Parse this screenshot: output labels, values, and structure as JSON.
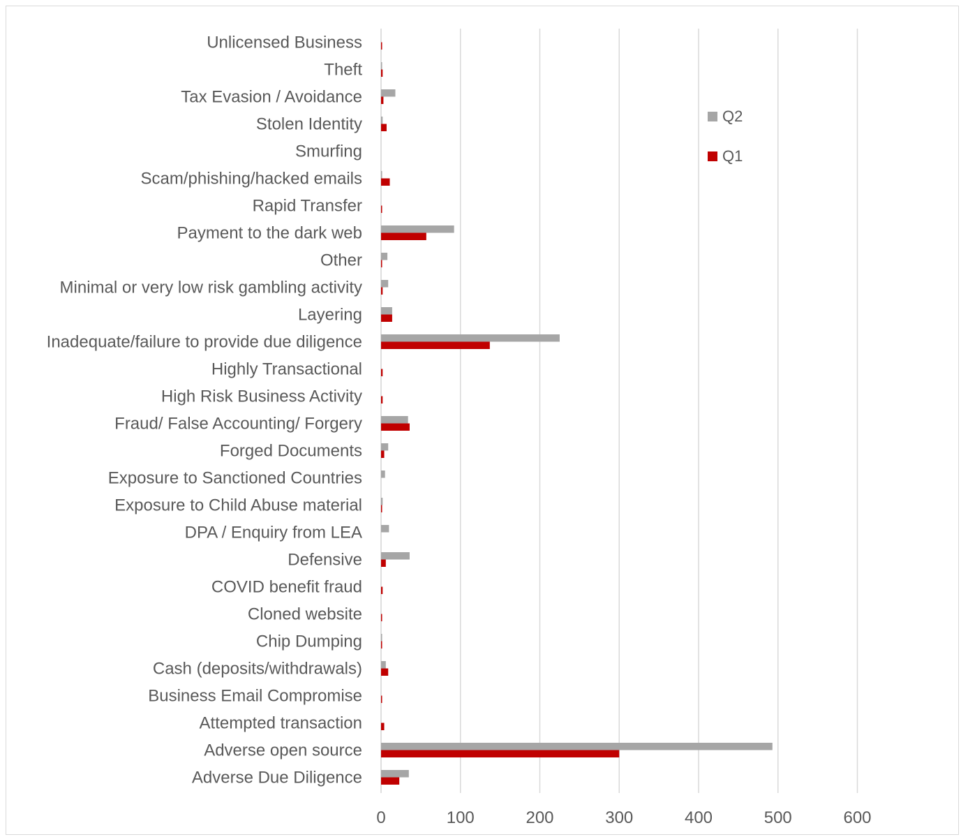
{
  "chart_data": {
    "type": "bar",
    "orientation": "horizontal",
    "title": "",
    "xlabel": "",
    "ylabel": "",
    "xlim": [
      0,
      600
    ],
    "x_ticks": [
      "0",
      "100",
      "200",
      "300",
      "400",
      "500",
      "600"
    ],
    "grid": "vertical",
    "legend_position": "top-right",
    "categories": [
      "Unlicensed Business",
      "Theft",
      "Tax Evasion / Avoidance",
      "Stolen Identity",
      "Smurfing",
      "Scam/phishing/hacked emails",
      "Rapid Transfer",
      "Payment to the dark web",
      "Other",
      "Minimal or very low risk gambling activity",
      "Layering",
      "Inadequate/failure to provide due diligence",
      "Highly Transactional",
      "High Risk Business Activity",
      "Fraud/ False Accounting/ Forgery",
      "Forged Documents",
      "Exposure to Sanctioned Countries",
      "Exposure to Child Abuse material",
      "DPA / Enquiry from  LEA",
      "Defensive",
      "COVID benefit fraud",
      "Cloned website",
      "Chip Dumping",
      "Cash (deposits/withdrawals)",
      "Business Email Compromise",
      "Attempted transaction",
      "Adverse open source",
      "Adverse Due Diligence"
    ],
    "series": [
      {
        "name": "Q2",
        "color": "#a6a6a6",
        "values": [
          0,
          1,
          18,
          2,
          0,
          1,
          0,
          92,
          8,
          9,
          14,
          225,
          0,
          0,
          34,
          9,
          5,
          2,
          10,
          36,
          0,
          0,
          1,
          6,
          0,
          0,
          493,
          35
        ]
      },
      {
        "name": "Q1",
        "color": "#c00000",
        "values": [
          1,
          2,
          3,
          7,
          0,
          11,
          1,
          57,
          1,
          2,
          14,
          137,
          2,
          2,
          36,
          4,
          0,
          1,
          0,
          6,
          2,
          1,
          1,
          9,
          1,
          4,
          300,
          23
        ]
      }
    ]
  },
  "legend": {
    "items": [
      {
        "label": "Q2",
        "color": "#a6a6a6"
      },
      {
        "label": "Q1",
        "color": "#c00000"
      }
    ]
  },
  "colors": {
    "grid": "#d9d9d9",
    "text": "#595959"
  }
}
